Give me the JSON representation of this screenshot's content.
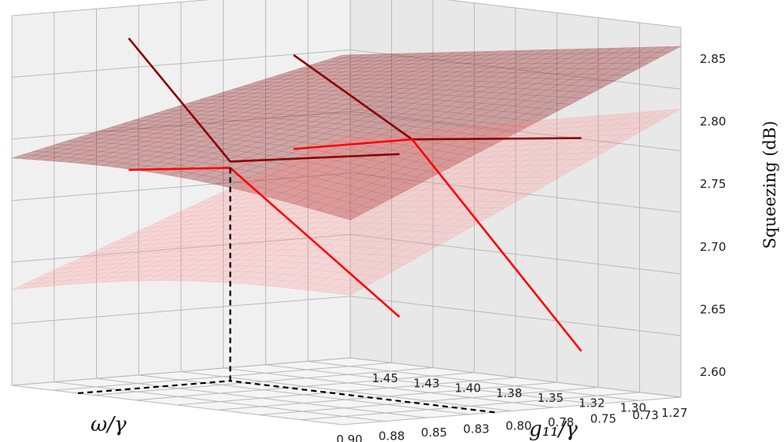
{
  "chart_data": {
    "type": "surface3d",
    "xlabel": "ω/γ",
    "ylabel": "g₁₁/γ",
    "zlabel": "Squeezing (dB)",
    "x_ticks": [
      "0.90",
      "0.88",
      "0.85",
      "0.83",
      "0.80",
      "0.78",
      "0.75",
      "0.73"
    ],
    "y_ticks": [
      "1.45",
      "1.43",
      "1.40",
      "1.38",
      "1.35",
      "1.32",
      "1.30",
      "1.27"
    ],
    "z_ticks": [
      "2.60",
      "2.65",
      "2.70",
      "2.75",
      "2.80",
      "2.85"
    ],
    "xlim": [
      0.71,
      0.91
    ],
    "ylim": [
      1.26,
      1.46
    ],
    "zlim": [
      2.58,
      2.875
    ],
    "grid": true,
    "surfaces": [
      {
        "color": "#8b1a1a",
        "alpha": 0.35,
        "corners_z": {
          "x_max_y_max": 2.69,
          "x_min_y_max": 2.76,
          "x_max_y_min": 2.86,
          "x_min_y_min": 2.875
        }
      },
      {
        "color": "#ff8080",
        "alpha": 0.22,
        "corners_z": {
          "x_max_y_max": 2.63,
          "x_min_y_max": 2.655,
          "x_max_y_min": 2.81,
          "x_min_y_min": 2.81
        }
      }
    ],
    "curves": [
      {
        "color": "#8b0000",
        "points": [
          [
            0.9,
            1.42,
            2.75
          ],
          [
            0.8,
            1.42,
            2.755
          ],
          [
            0.74,
            1.42,
            2.86
          ]
        ]
      },
      {
        "color": "#8b0000",
        "points": [
          [
            0.9,
            1.31,
            2.78
          ],
          [
            0.8,
            1.31,
            2.79
          ],
          [
            0.73,
            1.31,
            2.865
          ]
        ]
      },
      {
        "color": "#ff0000",
        "points": [
          [
            0.9,
            1.42,
            2.62
          ],
          [
            0.8,
            1.42,
            2.75
          ],
          [
            0.74,
            1.42,
            2.755
          ]
        ]
      },
      {
        "color": "#ff0000",
        "points": [
          [
            0.9,
            1.31,
            2.61
          ],
          [
            0.8,
            1.31,
            2.79
          ],
          [
            0.73,
            1.31,
            2.79
          ]
        ]
      }
    ],
    "marker_point": {
      "x": 0.8,
      "y": 1.42,
      "z": 2.75
    }
  }
}
